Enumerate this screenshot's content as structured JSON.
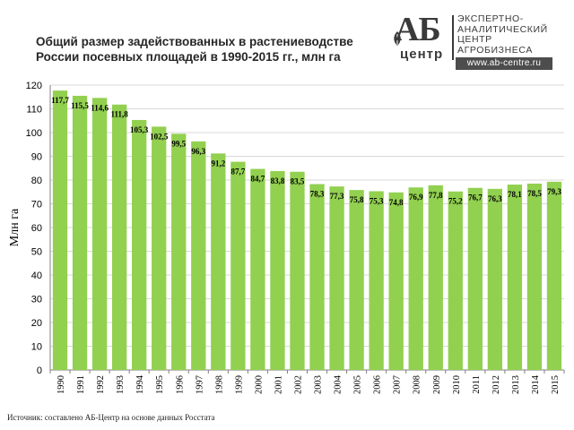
{
  "title": {
    "line1": "Общий размер задействованных в растениеводстве",
    "line2": "России посевных площадей в 1990-2015 гг., млн га"
  },
  "logo": {
    "ab": "АБ",
    "center": "центр",
    "text_lines": [
      "ЭКСПЕРТНО-",
      "АНАЛИТИЧЕСКИЙ",
      "ЦЕНТР",
      "АГРОБИЗНЕСА"
    ],
    "url": "www.ab-centre.ru"
  },
  "source": "Источник:  составлено АБ-Центр  на основе данных  Росстата",
  "colors": {
    "bar": "#92d050",
    "grid": "#d9d9d9",
    "axis": "#808080",
    "text": "#000000"
  },
  "chart_data": {
    "type": "bar",
    "title": "Общий размер задействованных в растениеводстве России посевных площадей в 1990-2015 гг., млн га",
    "xlabel": "",
    "ylabel": "Млн га",
    "ylim": [
      0,
      120
    ],
    "yticks": [
      0,
      10,
      20,
      30,
      40,
      50,
      60,
      70,
      80,
      90,
      100,
      110,
      120
    ],
    "grid": true,
    "legend": "none",
    "categories": [
      "1990",
      "1991",
      "1992",
      "1993",
      "1994",
      "1995",
      "1996",
      "1997",
      "1998",
      "1999",
      "2000",
      "2001",
      "2002",
      "2003",
      "2004",
      "2005",
      "2006",
      "2007",
      "2008",
      "2009",
      "2010",
      "2011",
      "2012",
      "2013",
      "2014",
      "2015"
    ],
    "values": [
      117.7,
      115.5,
      114.6,
      111.8,
      105.3,
      102.5,
      99.5,
      96.3,
      91.2,
      87.7,
      84.7,
      83.8,
      83.5,
      78.3,
      77.3,
      75.8,
      75.3,
      74.8,
      76.9,
      77.8,
      75.2,
      76.7,
      76.3,
      78.1,
      78.5,
      79.3
    ],
    "data_labels": [
      "117,7",
      "115,5",
      "114,6",
      "111,8",
      "105,3",
      "102,5",
      "99,5",
      "96,3",
      "91,2",
      "87,7",
      "84,7",
      "83,8",
      "83,5",
      "78,3",
      "77,3",
      "75,8",
      "75,3",
      "74,8",
      "76,9",
      "77,8",
      "75,2",
      "76,7",
      "76,3",
      "78,1",
      "78,5",
      "79,3"
    ]
  }
}
